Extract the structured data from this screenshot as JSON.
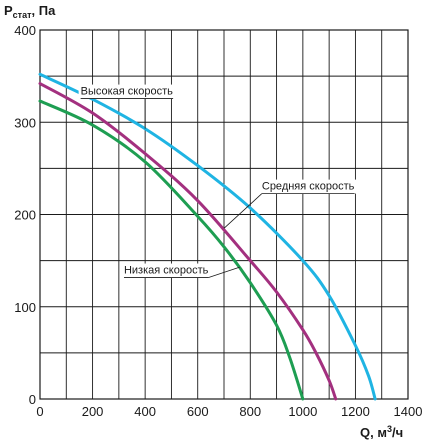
{
  "chart_data": {
    "type": "line",
    "title": "",
    "ylabel": {
      "main": "P",
      "sub": "стат",
      "rest": ", Па"
    },
    "xlabel": {
      "main": "Q, м",
      "sup": "3",
      "rest": "/ч"
    },
    "xlim": [
      0,
      1400
    ],
    "ylim": [
      0,
      400
    ],
    "xticks": [
      "0",
      "200",
      "400",
      "600",
      "800",
      "1000",
      "1200",
      "1400"
    ],
    "yticks": [
      "0",
      "100",
      "200",
      "300",
      "400"
    ],
    "grid": true,
    "legend": "none",
    "series": [
      {
        "name": "Высокая скорость",
        "color": "#1fb4e3",
        "x": [
          0,
          200,
          400,
          600,
          800,
          1000,
          1100,
          1200,
          1250,
          1275
        ],
        "y": [
          352,
          325,
          293,
          253,
          207,
          150,
          112,
          58,
          25,
          0
        ]
      },
      {
        "name": "Средняя скорость",
        "color": "#a3307f",
        "x": [
          0,
          200,
          400,
          600,
          800,
          900,
          1000,
          1050,
          1100,
          1125
        ],
        "y": [
          342,
          310,
          266,
          215,
          150,
          116,
          75,
          50,
          20,
          0
        ]
      },
      {
        "name": "Низкая скорость",
        "color": "#1e9e52",
        "x": [
          0,
          200,
          400,
          600,
          700,
          800,
          900,
          950,
          1000
        ],
        "y": [
          323,
          297,
          257,
          198,
          165,
          126,
          80,
          45,
          0
        ]
      }
    ],
    "annotations": [
      {
        "text": "Высокая скорость",
        "series": 0,
        "at": [
          400,
          293
        ],
        "label_at": [
          330,
          330
        ]
      },
      {
        "text": "Средняя скорость",
        "series": 1,
        "at": [
          700,
          185
        ],
        "label_at": [
          1020,
          227
        ]
      },
      {
        "text": "Низкая скорость",
        "series": 2,
        "at": [
          760,
          143
        ],
        "label_at": [
          480,
          136
        ]
      }
    ]
  }
}
